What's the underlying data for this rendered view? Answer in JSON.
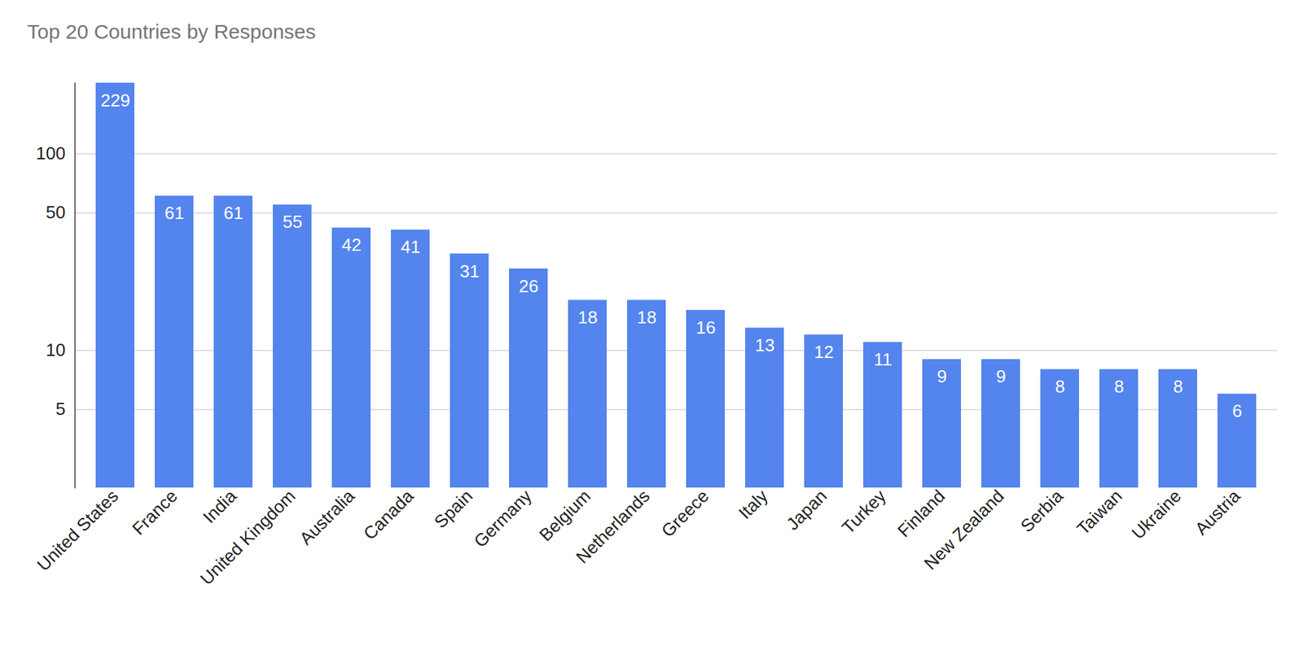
{
  "chart_data": {
    "type": "bar",
    "title": "Top 20 Countries by Responses",
    "categories": [
      "United States",
      "France",
      "India",
      "United Kingdom",
      "Australia",
      "Canada",
      "Spain",
      "Germany",
      "Belgium",
      "Netherlands",
      "Greece",
      "Italy",
      "Japan",
      "Turkey",
      "Finland",
      "New Zealand",
      "Serbia",
      "Taiwan",
      "Ukraine",
      "Austria"
    ],
    "values": [
      229,
      61,
      61,
      55,
      42,
      41,
      31,
      26,
      18,
      18,
      16,
      13,
      12,
      11,
      9,
      9,
      8,
      8,
      8,
      6
    ],
    "color": "#5484ed",
    "log": "y",
    "ylim": [
      2,
      229
    ],
    "yticks": [
      5,
      10,
      50,
      100
    ],
    "grid": true,
    "data_labels": true
  }
}
